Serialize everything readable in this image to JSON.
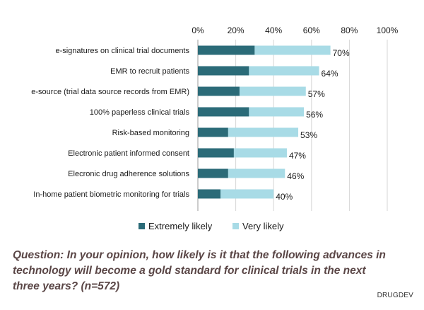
{
  "chart_data": {
    "type": "bar",
    "orientation": "horizontal",
    "stacked": true,
    "categories": [
      "e-signatures on clinical trial documents",
      "EMR to recruit patients",
      "e-source (trial data source records from EMR)",
      "100% paperless clinical trials",
      "Risk-based monitoring",
      "Electronic patient informed consent",
      "Elecronic drug adherence solutions",
      "In-home patient biometric monitoring for trials"
    ],
    "series": [
      {
        "name": "Extremely likely",
        "color": "#2b6b78",
        "values": [
          30,
          27,
          22,
          27,
          16,
          19,
          16,
          12
        ]
      },
      {
        "name": "Very likely",
        "color": "#a8dbe6",
        "values": [
          40,
          37,
          35,
          29,
          37,
          28,
          30,
          28
        ]
      }
    ],
    "totals": [
      70,
      64,
      57,
      56,
      53,
      47,
      46,
      40
    ],
    "total_labels": [
      "70%",
      "64%",
      "57%",
      "56%",
      "53%",
      "47%",
      "46%",
      "40%"
    ],
    "xlim": [
      0,
      100
    ],
    "xticks": [
      0,
      20,
      40,
      60,
      80,
      100
    ],
    "xtick_labels": [
      "0%",
      "20%",
      "40%",
      "60%",
      "80%",
      "100%"
    ],
    "xaxis_position": "top",
    "grid": true,
    "legend_position": "bottom",
    "title": "",
    "xlabel": "",
    "ylabel": ""
  },
  "question": {
    "lines": [
      "Question: In your opinion, how likely is it that the following advances in",
      "technology will become a gold standard for clinical trials in the next",
      "three years?   (n=572)"
    ]
  },
  "source": "DRUGDEV"
}
